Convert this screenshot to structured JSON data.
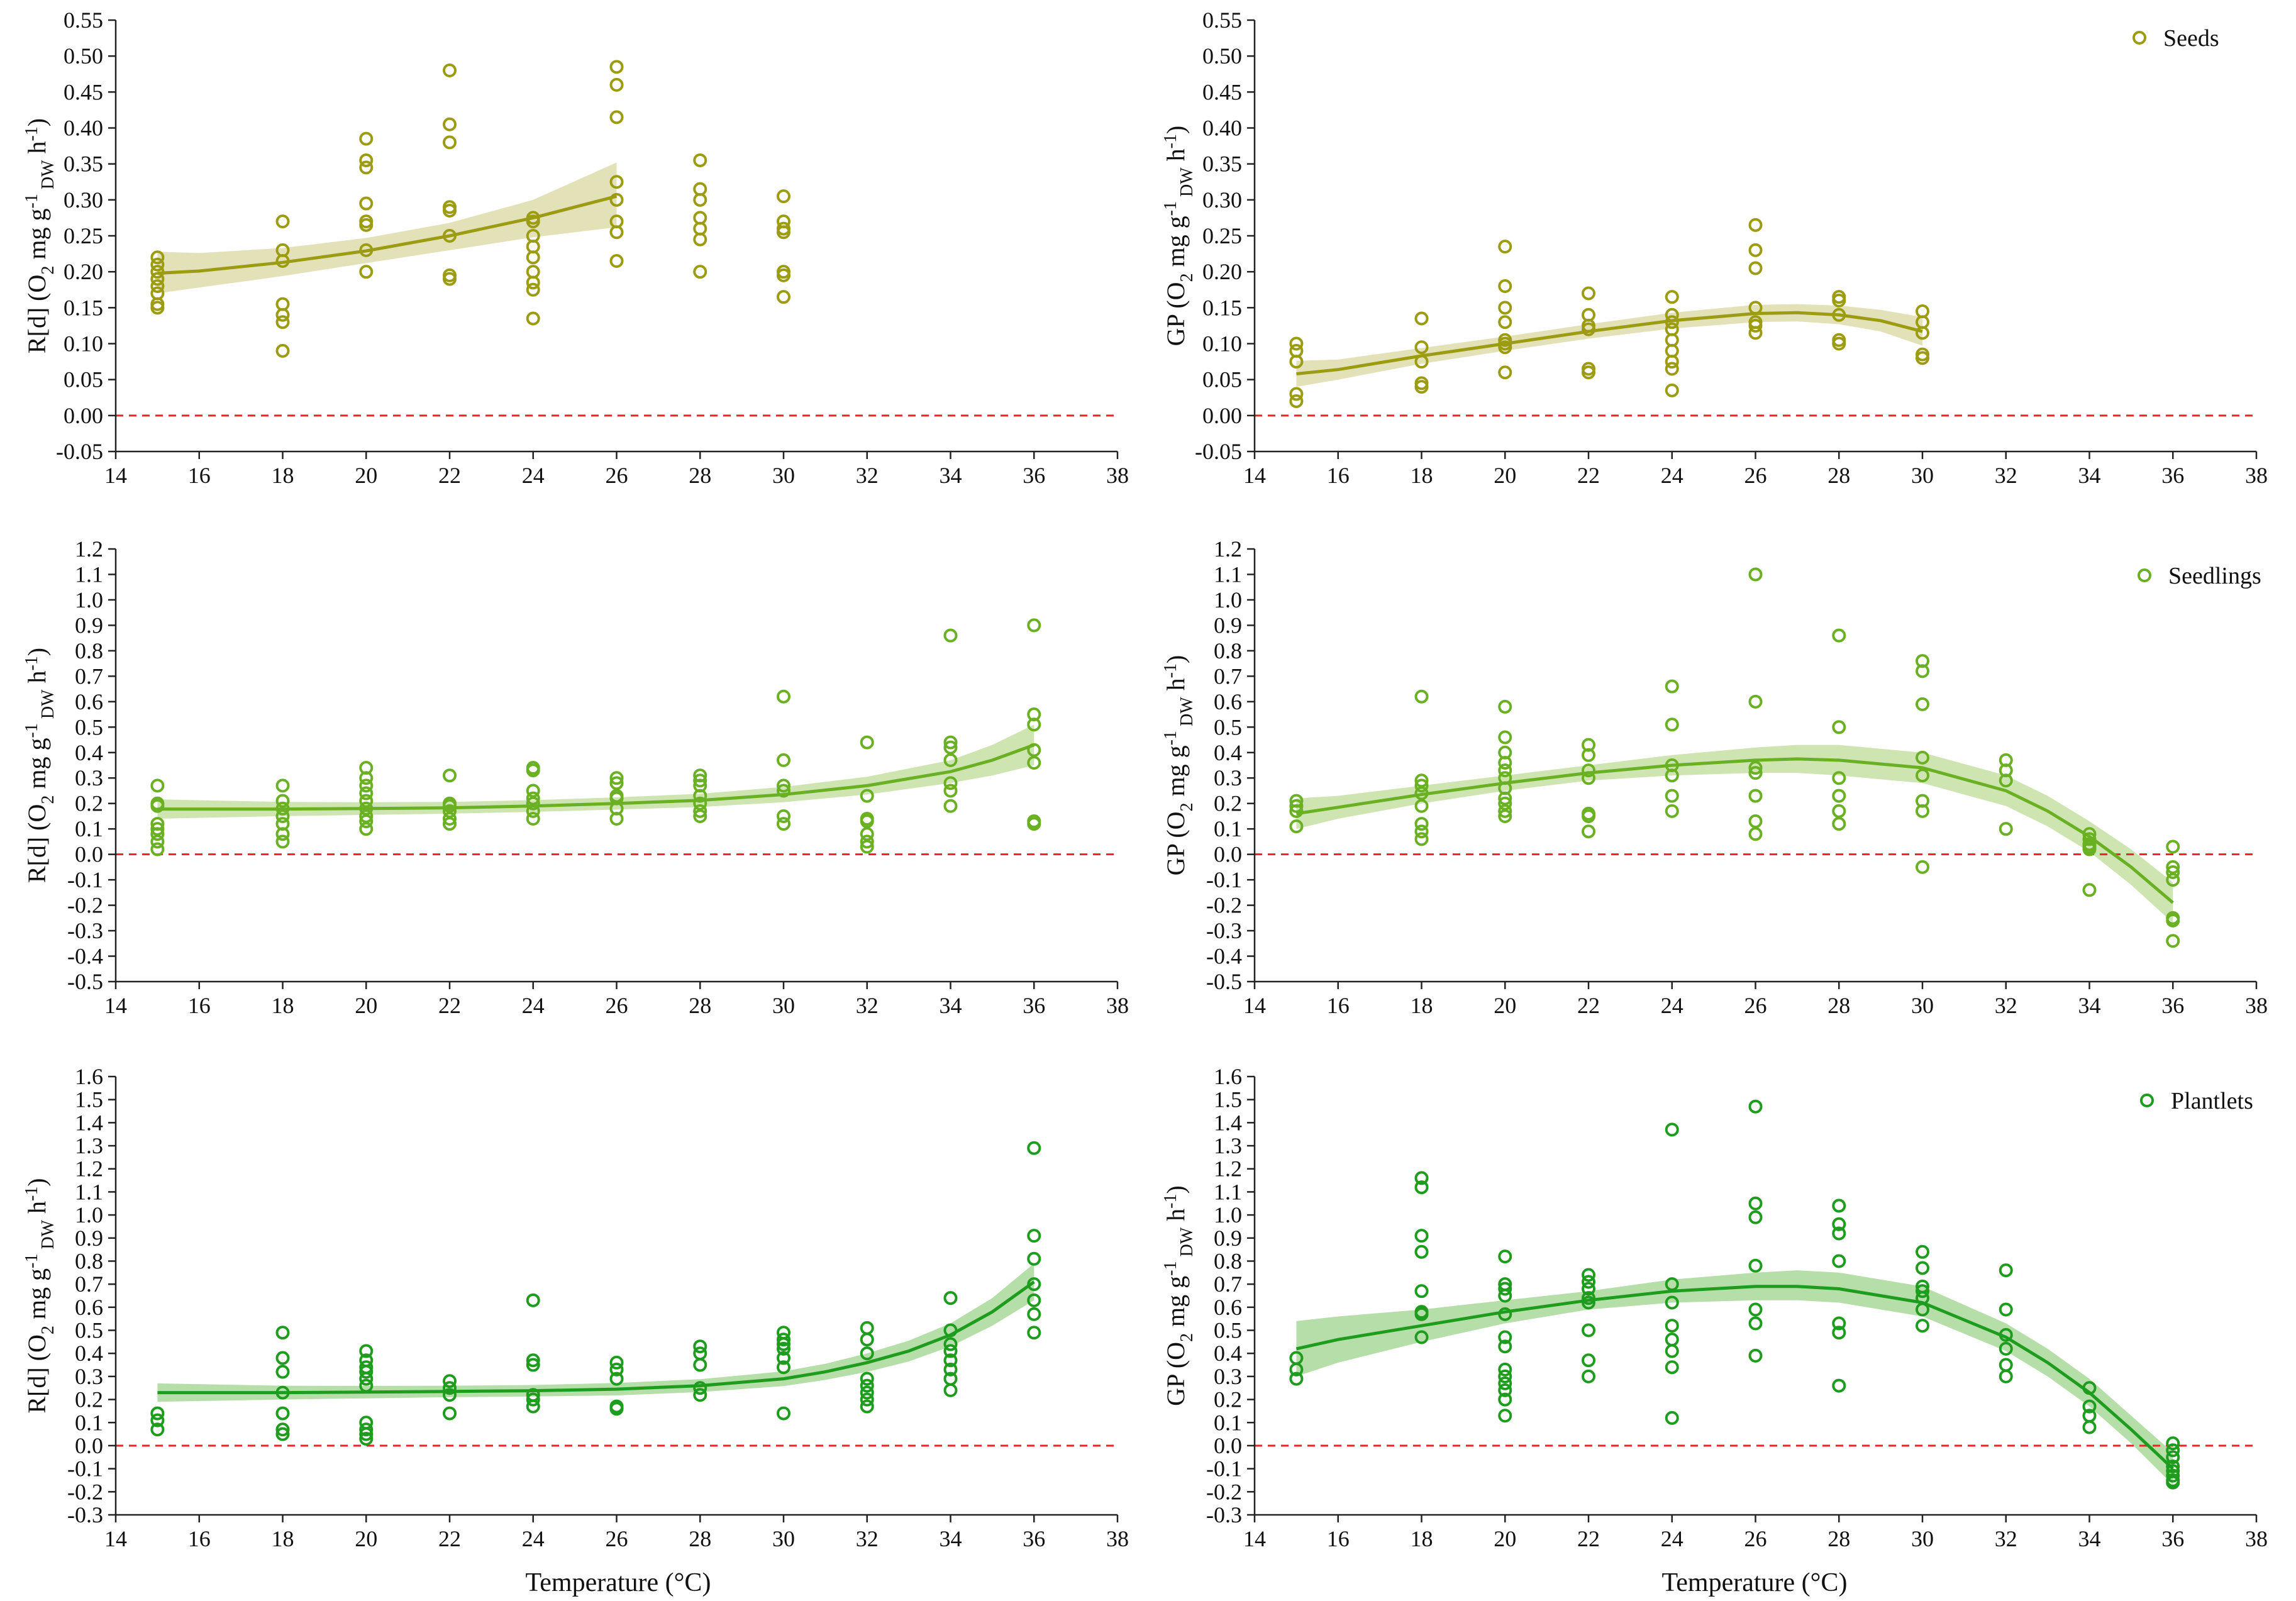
{
  "colors": {
    "seeds": "#9c9c12",
    "seeds_band": "#dedcaa",
    "seedlings": "#6ab023",
    "seedlings_band": "#c5e1a5",
    "plantlets": "#1e9c1e",
    "plantlets_band": "#a8d89a",
    "zero_line": "#ee2222",
    "axis": "#222222"
  },
  "xlabel": "Temperature (°C)",
  "chart_data": [
    {
      "id": "seeds-rd",
      "type": "scatter",
      "group": "seeds",
      "ylabel": "R[d] (O2 mg g-1 DW h-1)",
      "xlim": [
        14,
        38
      ],
      "ylim": [
        -0.05,
        0.55
      ],
      "ytick_step": 0.05,
      "ytick_decimals": 2,
      "x_ticks": [
        14,
        16,
        18,
        20,
        22,
        24,
        26,
        28,
        30,
        32,
        34,
        36,
        38
      ],
      "points": {
        "15": [
          0.22,
          0.21,
          0.2,
          0.19,
          0.18,
          0.17,
          0.155,
          0.15
        ],
        "18": [
          0.27,
          0.23,
          0.215,
          0.155,
          0.14,
          0.13,
          0.09
        ],
        "20": [
          0.385,
          0.355,
          0.345,
          0.295,
          0.27,
          0.265,
          0.23,
          0.2
        ],
        "22": [
          0.48,
          0.405,
          0.38,
          0.29,
          0.285,
          0.25,
          0.195,
          0.19
        ],
        "24": [
          0.275,
          0.27,
          0.25,
          0.235,
          0.22,
          0.2,
          0.185,
          0.175,
          0.135
        ],
        "26": [
          0.485,
          0.46,
          0.415,
          0.325,
          0.3,
          0.27,
          0.255,
          0.215
        ],
        "28": [
          0.355,
          0.315,
          0.3,
          0.275,
          0.26,
          0.245,
          0.2
        ],
        "30": [
          0.305,
          0.27,
          0.26,
          0.255,
          0.2,
          0.195,
          0.165
        ]
      },
      "fit": {
        "x": [
          15,
          16,
          18,
          20,
          22,
          24,
          26
        ],
        "y": [
          0.198,
          0.201,
          0.213,
          0.229,
          0.25,
          0.275,
          0.305
        ]
      },
      "band": {
        "x": [
          15,
          16,
          18,
          20,
          22,
          24,
          26
        ],
        "lower": [
          0.17,
          0.178,
          0.194,
          0.212,
          0.23,
          0.248,
          0.262
        ],
        "upper": [
          0.228,
          0.226,
          0.233,
          0.247,
          0.268,
          0.3,
          0.352
        ]
      }
    },
    {
      "id": "seeds-gp",
      "type": "scatter",
      "group": "seeds",
      "ylabel": "GP (O2 mg g-1 DW h-1)",
      "legend": "Seeds",
      "xlim": [
        14,
        38
      ],
      "ylim": [
        -0.05,
        0.55
      ],
      "ytick_step": 0.05,
      "ytick_decimals": 2,
      "x_ticks": [
        14,
        16,
        18,
        20,
        22,
        24,
        26,
        28,
        30,
        32,
        34,
        36,
        38
      ],
      "points": {
        "15": [
          0.1,
          0.09,
          0.075,
          0.03,
          0.02
        ],
        "18": [
          0.135,
          0.095,
          0.075,
          0.045,
          0.04
        ],
        "20": [
          0.235,
          0.18,
          0.15,
          0.13,
          0.105,
          0.1,
          0.095,
          0.06
        ],
        "22": [
          0.17,
          0.14,
          0.125,
          0.12,
          0.065,
          0.06
        ],
        "24": [
          0.165,
          0.14,
          0.13,
          0.12,
          0.105,
          0.09,
          0.075,
          0.065,
          0.035
        ],
        "26": [
          0.265,
          0.23,
          0.205,
          0.15,
          0.13,
          0.125,
          0.115
        ],
        "28": [
          0.165,
          0.16,
          0.14,
          0.105,
          0.1
        ],
        "30": [
          0.145,
          0.13,
          0.115,
          0.085,
          0.08
        ]
      },
      "fit": {
        "x": [
          15,
          16,
          18,
          20,
          22,
          24,
          26,
          27,
          28,
          29,
          30
        ],
        "y": [
          0.058,
          0.064,
          0.083,
          0.1,
          0.117,
          0.132,
          0.142,
          0.143,
          0.14,
          0.132,
          0.117
        ]
      },
      "band": {
        "x": [
          15,
          16,
          18,
          20,
          22,
          24,
          26,
          27,
          28,
          29,
          30
        ],
        "lower": [
          0.04,
          0.05,
          0.072,
          0.09,
          0.107,
          0.121,
          0.13,
          0.131,
          0.127,
          0.117,
          0.097
        ],
        "upper": [
          0.076,
          0.078,
          0.094,
          0.11,
          0.127,
          0.143,
          0.154,
          0.155,
          0.153,
          0.147,
          0.137
        ]
      }
    },
    {
      "id": "seedlings-rd",
      "type": "scatter",
      "group": "seedlings",
      "ylabel": "R[d] (O2 mg g-1 DW h-1)",
      "xlim": [
        14,
        38
      ],
      "ylim": [
        -0.5,
        1.2
      ],
      "ytick_step": 0.1,
      "ytick_decimals": 1,
      "x_ticks": [
        14,
        16,
        18,
        20,
        22,
        24,
        26,
        28,
        30,
        32,
        34,
        36,
        38
      ],
      "points": {
        "15": [
          0.27,
          0.2,
          0.19,
          0.12,
          0.1,
          0.08,
          0.05,
          0.02
        ],
        "18": [
          0.27,
          0.21,
          0.18,
          0.15,
          0.12,
          0.08,
          0.05
        ],
        "20": [
          0.34,
          0.3,
          0.27,
          0.24,
          0.21,
          0.18,
          0.15,
          0.13,
          0.1
        ],
        "22": [
          0.31,
          0.2,
          0.19,
          0.17,
          0.14,
          0.12
        ],
        "24": [
          0.34,
          0.33,
          0.25,
          0.22,
          0.2,
          0.17,
          0.14
        ],
        "26": [
          0.3,
          0.28,
          0.23,
          0.22,
          0.18,
          0.14
        ],
        "28": [
          0.31,
          0.29,
          0.27,
          0.23,
          0.2,
          0.17,
          0.15
        ],
        "30": [
          0.62,
          0.37,
          0.27,
          0.25,
          0.15,
          0.12
        ],
        "32": [
          0.44,
          0.23,
          0.14,
          0.13,
          0.08,
          0.05,
          0.03
        ],
        "34": [
          0.86,
          0.44,
          0.42,
          0.37,
          0.28,
          0.25,
          0.19
        ],
        "36": [
          0.9,
          0.55,
          0.51,
          0.41,
          0.36,
          0.13,
          0.12
        ]
      },
      "fit": {
        "x": [
          15,
          18,
          20,
          22,
          24,
          26,
          28,
          30,
          32,
          34,
          35,
          36
        ],
        "y": [
          0.178,
          0.178,
          0.18,
          0.183,
          0.19,
          0.2,
          0.212,
          0.235,
          0.27,
          0.325,
          0.37,
          0.43
        ]
      },
      "band": {
        "x": [
          15,
          18,
          20,
          22,
          24,
          26,
          28,
          30,
          32,
          34,
          35,
          36
        ],
        "lower": [
          0.14,
          0.15,
          0.155,
          0.16,
          0.167,
          0.176,
          0.186,
          0.205,
          0.235,
          0.28,
          0.31,
          0.35
        ],
        "upper": [
          0.216,
          0.206,
          0.205,
          0.206,
          0.213,
          0.224,
          0.238,
          0.265,
          0.305,
          0.37,
          0.43,
          0.51
        ]
      }
    },
    {
      "id": "seedlings-gp",
      "type": "scatter",
      "group": "seedlings",
      "ylabel": "GP (O2 mg g-1 DW h-1)",
      "legend": "Seedlings",
      "xlim": [
        14,
        38
      ],
      "ylim": [
        -0.5,
        1.2
      ],
      "ytick_step": 0.1,
      "ytick_decimals": 1,
      "x_ticks": [
        14,
        16,
        18,
        20,
        22,
        24,
        26,
        28,
        30,
        32,
        34,
        36,
        38
      ],
      "points": {
        "15": [
          0.21,
          0.19,
          0.17,
          0.11
        ],
        "18": [
          0.62,
          0.29,
          0.27,
          0.24,
          0.19,
          0.12,
          0.09,
          0.06
        ],
        "20": [
          0.58,
          0.46,
          0.4,
          0.36,
          0.33,
          0.3,
          0.26,
          0.22,
          0.2,
          0.17,
          0.15
        ],
        "22": [
          0.43,
          0.39,
          0.33,
          0.3,
          0.16,
          0.15,
          0.09
        ],
        "24": [
          0.66,
          0.51,
          0.35,
          0.31,
          0.23,
          0.17
        ],
        "26": [
          1.1,
          0.6,
          0.34,
          0.32,
          0.23,
          0.13,
          0.08
        ],
        "28": [
          0.86,
          0.5,
          0.3,
          0.23,
          0.17,
          0.12
        ],
        "30": [
          0.76,
          0.72,
          0.59,
          0.38,
          0.31,
          0.21,
          0.17,
          -0.05
        ],
        "32": [
          0.37,
          0.33,
          0.29,
          0.1
        ],
        "34": [
          0.08,
          0.06,
          0.04,
          0.03,
          0.02,
          -0.14
        ],
        "36": [
          0.03,
          -0.05,
          -0.07,
          -0.1,
          -0.25,
          -0.26,
          -0.34
        ]
      },
      "fit": {
        "x": [
          15,
          16,
          18,
          20,
          22,
          24,
          26,
          27,
          28,
          30,
          32,
          33,
          34,
          35,
          36
        ],
        "y": [
          0.16,
          0.185,
          0.235,
          0.28,
          0.32,
          0.35,
          0.37,
          0.375,
          0.37,
          0.34,
          0.25,
          0.17,
          0.07,
          -0.05,
          -0.19
        ]
      },
      "band": {
        "x": [
          15,
          16,
          18,
          20,
          22,
          24,
          26,
          27,
          28,
          30,
          32,
          33,
          34,
          35,
          36
        ],
        "lower": [
          0.1,
          0.14,
          0.2,
          0.25,
          0.29,
          0.31,
          0.32,
          0.32,
          0.31,
          0.28,
          0.19,
          0.11,
          0.01,
          -0.12,
          -0.27
        ],
        "upper": [
          0.22,
          0.23,
          0.27,
          0.31,
          0.35,
          0.39,
          0.42,
          0.43,
          0.43,
          0.4,
          0.31,
          0.23,
          0.13,
          0.02,
          -0.11
        ]
      }
    },
    {
      "id": "plantlets-rd",
      "type": "scatter",
      "group": "plantlets",
      "ylabel": "R[d] (O2 mg g-1 DW h-1)",
      "xlim": [
        14,
        38
      ],
      "ylim": [
        -0.3,
        1.6
      ],
      "ytick_step": 0.1,
      "ytick_decimals": 1,
      "x_ticks": [
        14,
        16,
        18,
        20,
        22,
        24,
        26,
        28,
        30,
        32,
        34,
        36,
        38
      ],
      "points": {
        "15": [
          0.14,
          0.11,
          0.07
        ],
        "18": [
          0.49,
          0.38,
          0.32,
          0.23,
          0.14,
          0.07,
          0.05
        ],
        "20": [
          0.41,
          0.37,
          0.34,
          0.32,
          0.29,
          0.26,
          0.1,
          0.07,
          0.05,
          0.03
        ],
        "22": [
          0.28,
          0.25,
          0.22,
          0.14
        ],
        "24": [
          0.63,
          0.37,
          0.35,
          0.22,
          0.2,
          0.17
        ],
        "26": [
          0.36,
          0.33,
          0.29,
          0.17,
          0.16
        ],
        "28": [
          0.43,
          0.4,
          0.35,
          0.25,
          0.22
        ],
        "30": [
          0.49,
          0.46,
          0.44,
          0.42,
          0.38,
          0.34,
          0.14
        ],
        "32": [
          0.51,
          0.46,
          0.4,
          0.29,
          0.26,
          0.23,
          0.2,
          0.17
        ],
        "34": [
          0.64,
          0.5,
          0.44,
          0.41,
          0.37,
          0.33,
          0.29,
          0.24
        ],
        "36": [
          1.29,
          0.91,
          0.81,
          0.7,
          0.63,
          0.57,
          0.49
        ]
      },
      "fit": {
        "x": [
          15,
          18,
          20,
          22,
          24,
          26,
          28,
          30,
          31,
          32,
          33,
          34,
          35,
          36
        ],
        "y": [
          0.23,
          0.23,
          0.232,
          0.235,
          0.238,
          0.245,
          0.26,
          0.29,
          0.32,
          0.36,
          0.41,
          0.48,
          0.58,
          0.71
        ]
      },
      "band": {
        "x": [
          15,
          18,
          20,
          22,
          24,
          26,
          28,
          30,
          31,
          32,
          33,
          34,
          35,
          36
        ],
        "lower": [
          0.19,
          0.2,
          0.205,
          0.21,
          0.213,
          0.218,
          0.232,
          0.258,
          0.285,
          0.32,
          0.365,
          0.43,
          0.52,
          0.63
        ],
        "upper": [
          0.27,
          0.26,
          0.259,
          0.26,
          0.263,
          0.272,
          0.288,
          0.322,
          0.355,
          0.4,
          0.455,
          0.53,
          0.64,
          0.79
        ]
      }
    },
    {
      "id": "plantlets-gp",
      "type": "scatter",
      "group": "plantlets",
      "ylabel": "GP (O2 mg g-1 DW h-1)",
      "legend": "Plantlets",
      "xlim": [
        14,
        38
      ],
      "ylim": [
        -0.3,
        1.6
      ],
      "ytick_step": 0.1,
      "ytick_decimals": 1,
      "x_ticks": [
        14,
        16,
        18,
        20,
        22,
        24,
        26,
        28,
        30,
        32,
        34,
        36,
        38
      ],
      "points": {
        "15": [
          0.38,
          0.33,
          0.29
        ],
        "18": [
          1.16,
          1.12,
          0.91,
          0.84,
          0.67,
          0.58,
          0.57,
          0.47
        ],
        "20": [
          0.82,
          0.7,
          0.68,
          0.65,
          0.57,
          0.47,
          0.43,
          0.33,
          0.3,
          0.27,
          0.24,
          0.2,
          0.13
        ],
        "22": [
          0.74,
          0.71,
          0.68,
          0.64,
          0.62,
          0.5,
          0.37,
          0.3
        ],
        "24": [
          1.37,
          0.7,
          0.62,
          0.52,
          0.46,
          0.41,
          0.34,
          0.12
        ],
        "26": [
          1.47,
          1.05,
          0.99,
          0.78,
          0.59,
          0.53,
          0.39
        ],
        "28": [
          1.04,
          0.96,
          0.92,
          0.8,
          0.53,
          0.49,
          0.26
        ],
        "30": [
          0.84,
          0.77,
          0.69,
          0.67,
          0.64,
          0.59,
          0.52
        ],
        "32": [
          0.76,
          0.59,
          0.48,
          0.42,
          0.35,
          0.3
        ],
        "34": [
          0.25,
          0.17,
          0.13,
          0.08
        ],
        "36": [
          0.01,
          -0.02,
          -0.05,
          -0.09,
          -0.11,
          -0.13,
          -0.15,
          -0.16
        ]
      },
      "fit": {
        "x": [
          15,
          16,
          18,
          20,
          22,
          24,
          26,
          27,
          28,
          30,
          32,
          33,
          34,
          35,
          36
        ],
        "y": [
          0.42,
          0.46,
          0.52,
          0.58,
          0.63,
          0.67,
          0.69,
          0.69,
          0.68,
          0.62,
          0.47,
          0.36,
          0.23,
          0.07,
          -0.1
        ]
      },
      "band": {
        "x": [
          15,
          16,
          18,
          20,
          22,
          24,
          26,
          27,
          28,
          30,
          32,
          33,
          34,
          35,
          36
        ],
        "lower": [
          0.3,
          0.36,
          0.45,
          0.53,
          0.59,
          0.62,
          0.63,
          0.63,
          0.62,
          0.56,
          0.41,
          0.3,
          0.17,
          0.01,
          -0.17
        ],
        "upper": [
          0.54,
          0.56,
          0.59,
          0.63,
          0.67,
          0.72,
          0.75,
          0.76,
          0.75,
          0.69,
          0.53,
          0.42,
          0.29,
          0.13,
          -0.03
        ]
      }
    }
  ]
}
